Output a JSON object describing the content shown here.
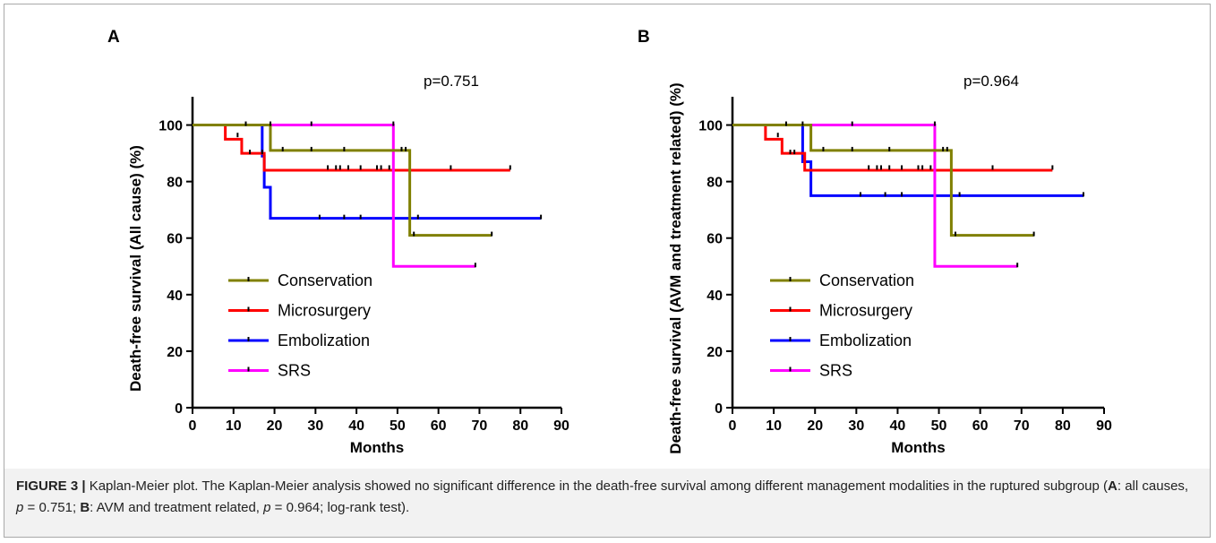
{
  "chart_data": [
    {
      "type": "line",
      "panel": "A",
      "ylabel": "Death-free survival (All cause) (%)",
      "xlabel": "Months",
      "xlim": [
        0,
        90
      ],
      "ylim": [
        0,
        110
      ],
      "xticks": [
        0,
        10,
        20,
        30,
        40,
        50,
        60,
        70,
        80,
        90
      ],
      "yticks": [
        0,
        20,
        40,
        60,
        80,
        100
      ],
      "annotation": "p=0.751",
      "series": [
        {
          "name": "Conservation",
          "color": "#808000",
          "steps": [
            [
              0,
              100
            ],
            [
              19,
              91
            ],
            [
              53,
              61
            ],
            [
              73,
              61
            ]
          ],
          "censors": [
            [
              13,
              100
            ],
            [
              19,
              100
            ],
            [
              22,
              91
            ],
            [
              29,
              91
            ],
            [
              37,
              91
            ],
            [
              51,
              91
            ],
            [
              52,
              91
            ],
            [
              54,
              61
            ],
            [
              73,
              61
            ]
          ]
        },
        {
          "name": "Microsurgery",
          "color": "#ff0000",
          "steps": [
            [
              0,
              100
            ],
            [
              8,
              95
            ],
            [
              12,
              90
            ],
            [
              17.5,
              84
            ],
            [
              77.5,
              84
            ]
          ],
          "censors": [
            [
              11,
              96
            ],
            [
              14,
              90
            ],
            [
              17,
              90
            ],
            [
              33,
              84.5
            ],
            [
              35,
              84.5
            ],
            [
              36,
              84.5
            ],
            [
              38,
              84.5
            ],
            [
              41,
              84.5
            ],
            [
              45,
              84.5
            ],
            [
              46,
              84.5
            ],
            [
              48,
              84.5
            ],
            [
              63,
              84.5
            ],
            [
              77.5,
              84.5
            ]
          ]
        },
        {
          "name": "Embolization",
          "color": "#0000ff",
          "steps": [
            [
              0,
              100
            ],
            [
              17,
              89
            ],
            [
              17.5,
              78
            ],
            [
              19,
              67
            ],
            [
              85,
              67
            ]
          ],
          "censors": [
            [
              31,
              67
            ],
            [
              37,
              67
            ],
            [
              41,
              67
            ],
            [
              55,
              67
            ],
            [
              85,
              67
            ]
          ]
        },
        {
          "name": "SRS",
          "color": "#ff00ff",
          "steps": [
            [
              0,
              100
            ],
            [
              49,
              50
            ],
            [
              69,
              50
            ]
          ],
          "censors": [
            [
              29,
              100
            ],
            [
              49,
              100
            ],
            [
              69,
              50
            ]
          ]
        }
      ]
    },
    {
      "type": "line",
      "panel": "B",
      "ylabel": "Death-free survival (AVM and treatment related) (%)",
      "xlabel": "Months",
      "xlim": [
        0,
        90
      ],
      "ylim": [
        0,
        110
      ],
      "xticks": [
        0,
        10,
        20,
        30,
        40,
        50,
        60,
        70,
        80,
        90
      ],
      "yticks": [
        0,
        20,
        40,
        60,
        80,
        100
      ],
      "annotation": "p=0.964",
      "series": [
        {
          "name": "Conservation",
          "color": "#808000",
          "steps": [
            [
              0,
              100
            ],
            [
              19,
              91
            ],
            [
              53,
              61
            ],
            [
              73,
              61
            ]
          ],
          "censors": [
            [
              13,
              100
            ],
            [
              17,
              100
            ],
            [
              22,
              91
            ],
            [
              29,
              91
            ],
            [
              38,
              91
            ],
            [
              51,
              91
            ],
            [
              52,
              91
            ],
            [
              54,
              61
            ],
            [
              73,
              61
            ]
          ]
        },
        {
          "name": "Microsurgery",
          "color": "#ff0000",
          "steps": [
            [
              0,
              100
            ],
            [
              8,
              95
            ],
            [
              12,
              90
            ],
            [
              17.5,
              84
            ],
            [
              77.5,
              84
            ]
          ],
          "censors": [
            [
              11,
              96
            ],
            [
              14,
              90
            ],
            [
              15,
              90
            ],
            [
              33,
              84.5
            ],
            [
              35,
              84.5
            ],
            [
              36,
              84.5
            ],
            [
              38,
              84.5
            ],
            [
              41,
              84.5
            ],
            [
              45,
              84.5
            ],
            [
              46,
              84.5
            ],
            [
              48,
              84.5
            ],
            [
              63,
              84.5
            ],
            [
              77.5,
              84.5
            ]
          ]
        },
        {
          "name": "Embolization",
          "color": "#0000ff",
          "steps": [
            [
              0,
              100
            ],
            [
              17,
              87
            ],
            [
              19,
              75
            ],
            [
              85,
              75
            ]
          ],
          "censors": [
            [
              31,
              75
            ],
            [
              37,
              75
            ],
            [
              41,
              75
            ],
            [
              55,
              75
            ],
            [
              85,
              75
            ]
          ]
        },
        {
          "name": "SRS",
          "color": "#ff00ff",
          "steps": [
            [
              0,
              100
            ],
            [
              49,
              50
            ],
            [
              69,
              50
            ]
          ],
          "censors": [
            [
              29,
              100
            ],
            [
              49,
              100
            ],
            [
              69,
              50
            ]
          ]
        }
      ]
    }
  ],
  "caption": {
    "figure_label": "FIGURE 3 |",
    "text_1": " Kaplan-Meier plot. The Kaplan-Meier analysis showed no significant difference in the death-free survival among different management modalities in the ruptured subgroup (",
    "a_label": "A",
    "text_2": ": all causes, ",
    "p_symbol_1": "p",
    "text_3": " = 0.751; ",
    "b_label": "B",
    "text_4": ": AVM and treatment related, ",
    "p_symbol_2": "p",
    "text_5": " = 0.964; log-rank test)."
  }
}
